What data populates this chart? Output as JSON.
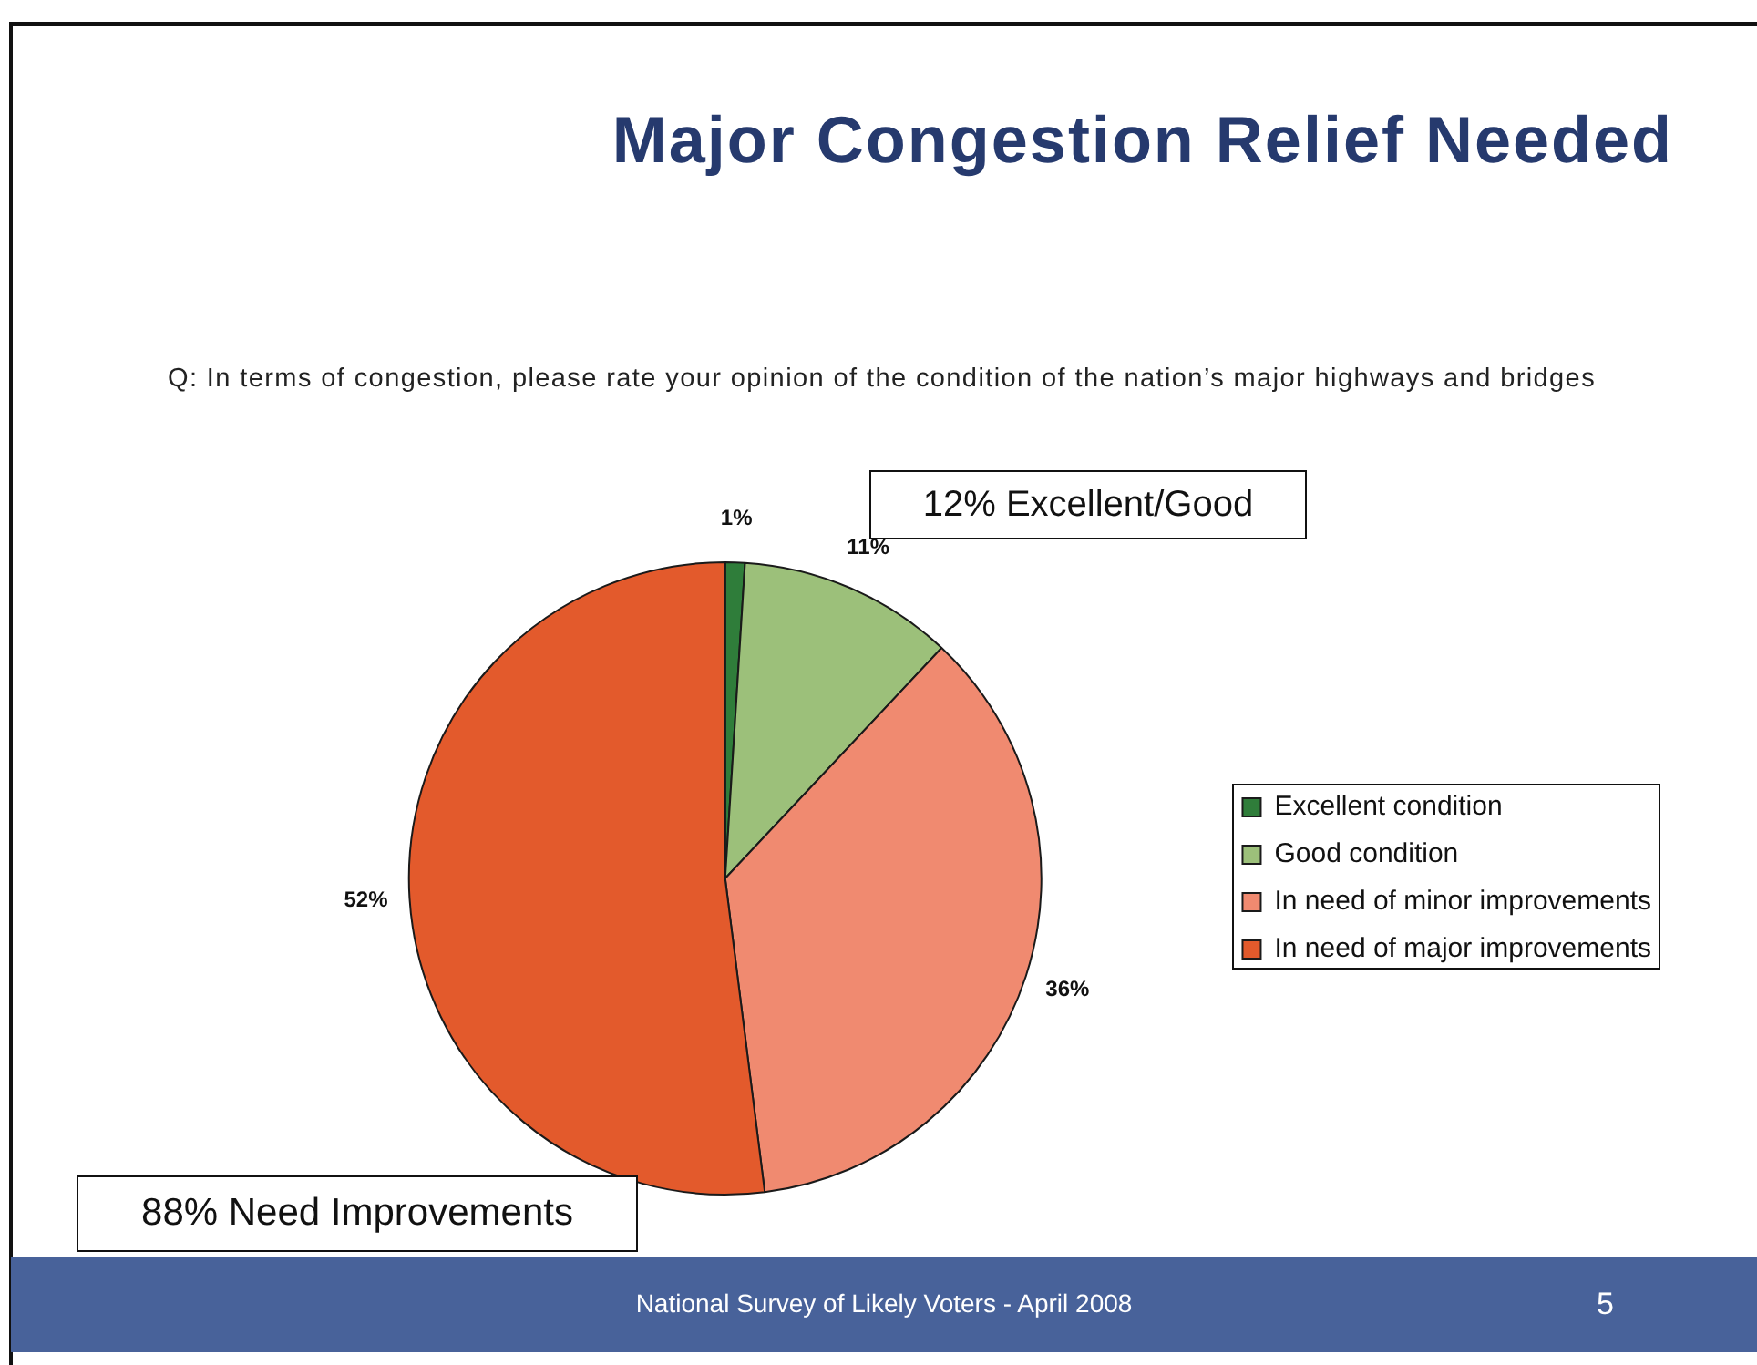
{
  "chart_data": {
    "type": "pie",
    "title": "Major Congestion Relief Needed",
    "subtitle": "Q: In terms of congestion, please rate your opinion of the condition of the nation’s major highways and bridges",
    "categories": [
      "Excellent condition",
      "Good condition",
      "In need of minor improvements",
      "In need of major improvements"
    ],
    "values": [
      1,
      11,
      36,
      52
    ],
    "colors": [
      "#2f7d3a",
      "#9cc07a",
      "#f08a70",
      "#e35a2c"
    ],
    "value_labels": [
      "1%",
      "11%",
      "36%",
      "52%"
    ],
    "legend": "right",
    "annotations": [
      "12% Excellent/Good",
      "88% Need Improvements",
      "National Survey of Likely Voters - April 2008",
      "5"
    ]
  }
}
